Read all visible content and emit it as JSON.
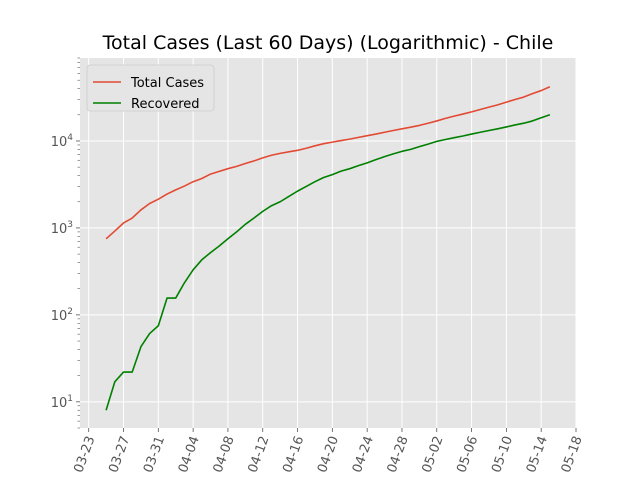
{
  "chart_data": {
    "type": "line",
    "title": "Total Cases (Last 60 Days) (Logarithmic) - Chile",
    "xlabel": "",
    "ylabel": "",
    "yscale": "log",
    "ylim": [
      5,
      90000
    ],
    "xlim": [
      "2020-03-22",
      "2020-05-18"
    ],
    "grid": true,
    "legend_position": "top-left",
    "background": "#E5E5E5",
    "x_ticks": [
      "03-23",
      "03-27",
      "03-31",
      "04-04",
      "04-08",
      "04-12",
      "04-16",
      "04-20",
      "04-24",
      "04-28",
      "05-02",
      "05-06",
      "05-10",
      "05-14",
      "05-18"
    ],
    "y_ticks": [
      {
        "value": 10,
        "base": "10",
        "exp": "1"
      },
      {
        "value": 100,
        "base": "10",
        "exp": "2"
      },
      {
        "value": 1000,
        "base": "10",
        "exp": "3"
      },
      {
        "value": 10000,
        "base": "10",
        "exp": "4"
      }
    ],
    "x": [
      "2020-03-25",
      "2020-03-26",
      "2020-03-27",
      "2020-03-28",
      "2020-03-29",
      "2020-03-30",
      "2020-03-31",
      "2020-04-01",
      "2020-04-02",
      "2020-04-03",
      "2020-04-04",
      "2020-04-05",
      "2020-04-06",
      "2020-04-07",
      "2020-04-08",
      "2020-04-09",
      "2020-04-10",
      "2020-04-11",
      "2020-04-12",
      "2020-04-13",
      "2020-04-14",
      "2020-04-15",
      "2020-04-16",
      "2020-04-17",
      "2020-04-18",
      "2020-04-19",
      "2020-04-20",
      "2020-04-21",
      "2020-04-22",
      "2020-04-23",
      "2020-04-24",
      "2020-04-25",
      "2020-04-26",
      "2020-04-27",
      "2020-04-28",
      "2020-04-29",
      "2020-04-30",
      "2020-05-01",
      "2020-05-02",
      "2020-05-03",
      "2020-05-04",
      "2020-05-05",
      "2020-05-06",
      "2020-05-07",
      "2020-05-08",
      "2020-05-09",
      "2020-05-10",
      "2020-05-11",
      "2020-05-12",
      "2020-05-13",
      "2020-05-14",
      "2020-05-15"
    ],
    "series": [
      {
        "name": "Total Cases",
        "color": "#E24A33",
        "values": [
          750,
          920,
          1140,
          1300,
          1610,
          1910,
          2140,
          2450,
          2740,
          3030,
          3400,
          3700,
          4160,
          4470,
          4800,
          5100,
          5500,
          5900,
          6400,
          6850,
          7200,
          7500,
          7800,
          8250,
          8800,
          9300,
          9700,
          10100,
          10500,
          11000,
          11500,
          12000,
          12600,
          13200,
          13800,
          14400,
          15100,
          16000,
          17000,
          18200,
          19300,
          20400,
          21600,
          23000,
          24500,
          26000,
          28000,
          30000,
          32000,
          35000,
          38000,
          42000
        ]
      },
      {
        "name": "Recovered",
        "color": "#008000",
        "values": [
          8,
          17,
          22,
          22,
          43,
          61,
          75,
          156,
          156,
          234,
          330,
          430,
          520,
          620,
          750,
          900,
          1100,
          1300,
          1550,
          1800,
          2000,
          2300,
          2650,
          3000,
          3400,
          3800,
          4100,
          4500,
          4800,
          5200,
          5600,
          6100,
          6600,
          7100,
          7600,
          8000,
          8600,
          9200,
          9900,
          10400,
          10900,
          11400,
          12000,
          12600,
          13200,
          13800,
          14500,
          15300,
          16000,
          17000,
          18500,
          20000
        ]
      }
    ]
  }
}
